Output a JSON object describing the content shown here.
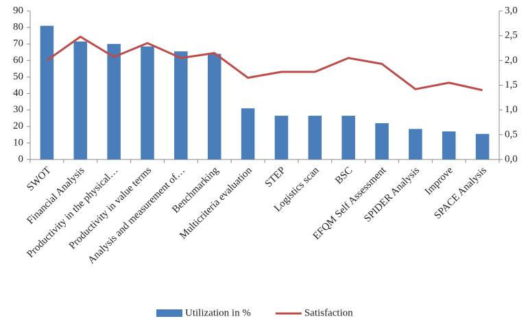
{
  "chart_data": {
    "type": "bar_line",
    "categories": [
      "SWOT",
      "Financial Analysis",
      "Productivity in the physical…",
      "Productivity in value terms",
      "Analysis and measurement of…",
      "Benchmarking",
      "Multicriteria evaluation",
      "STEP",
      "Logistics scan",
      "BSC",
      "EFQM Self Assessment",
      "SPIDER Analysis",
      "Improve",
      "SPACE Analysis"
    ],
    "series": [
      {
        "name": "Utilization in %",
        "type": "bar",
        "color": "#4a7ebb",
        "values": [
          81,
          71.5,
          70,
          68.5,
          65.5,
          64,
          31,
          26.5,
          26.5,
          26.5,
          22,
          18.5,
          17,
          15.5
        ]
      },
      {
        "name": "Satisfaction",
        "type": "line",
        "axis": "y2",
        "color": "#be4b48",
        "values": [
          2.0,
          2.48,
          2.07,
          2.35,
          2.05,
          2.15,
          1.65,
          1.77,
          1.77,
          2.05,
          1.93,
          1.42,
          1.55,
          1.4
        ]
      }
    ],
    "ylim": [
      0,
      90
    ],
    "yticks": [
      0,
      10,
      20,
      30,
      40,
      50,
      60,
      70,
      80,
      90
    ],
    "y2lim": [
      0,
      3
    ],
    "y2ticks": [
      {
        "value": 0,
        "label": "0,0"
      },
      {
        "value": 0.5,
        "label": "0,5"
      },
      {
        "value": 1,
        "label": "1,0"
      },
      {
        "value": 1.5,
        "label": "1,5"
      },
      {
        "value": 2,
        "label": "2,0"
      },
      {
        "value": 2.5,
        "label": "2,5"
      },
      {
        "value": 3,
        "label": "3,0"
      }
    ],
    "grid": false,
    "legend": "bottom"
  }
}
